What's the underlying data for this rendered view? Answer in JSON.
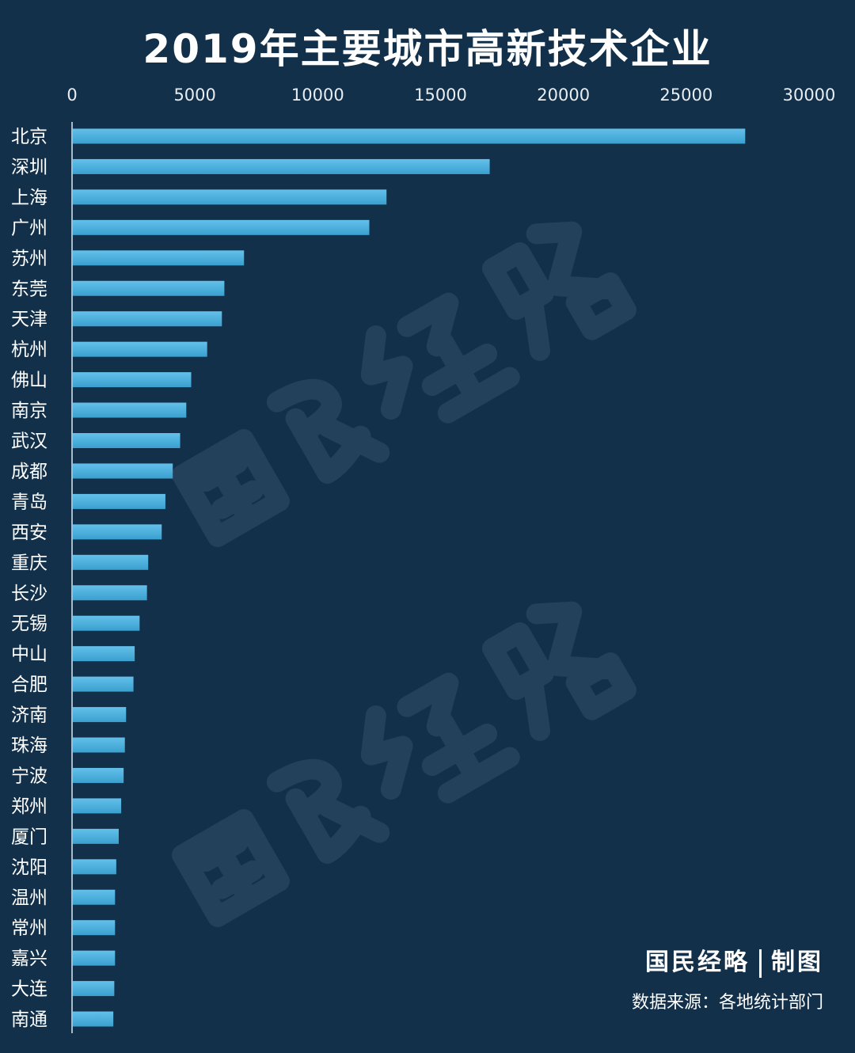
{
  "chart_data": {
    "type": "bar",
    "orientation": "horizontal",
    "title": "2019年主要城市高新技术企业",
    "xlim": [
      0,
      30000
    ],
    "x_ticks": [
      "0",
      "5000",
      "10000",
      "15000",
      "20000",
      "25000",
      "30000"
    ],
    "x_axis_position": "top",
    "grid": false,
    "bar_color": "#3aa0cf",
    "categories": [
      "北京",
      "深圳",
      "上海",
      "广州",
      "苏州",
      "东莞",
      "天津",
      "杭州",
      "佛山",
      "南京",
      "武汉",
      "成都",
      "青岛",
      "西安",
      "重庆",
      "长沙",
      "无锡",
      "中山",
      "合肥",
      "济南",
      "珠海",
      "宁波",
      "郑州",
      "厦门",
      "沈阳",
      "温州",
      "常州",
      "嘉兴",
      "大连",
      "南通"
    ],
    "values": [
      27400,
      17000,
      12800,
      12100,
      7000,
      6200,
      6100,
      5500,
      4850,
      4650,
      4400,
      4100,
      3800,
      3650,
      3100,
      3050,
      2750,
      2550,
      2500,
      2200,
      2150,
      2100,
      2000,
      1900,
      1800,
      1750,
      1750,
      1750,
      1720,
      1680
    ]
  },
  "credit": {
    "brand": "国民经略",
    "role": "制图"
  },
  "source_text": "数据来源：各地统计部门"
}
